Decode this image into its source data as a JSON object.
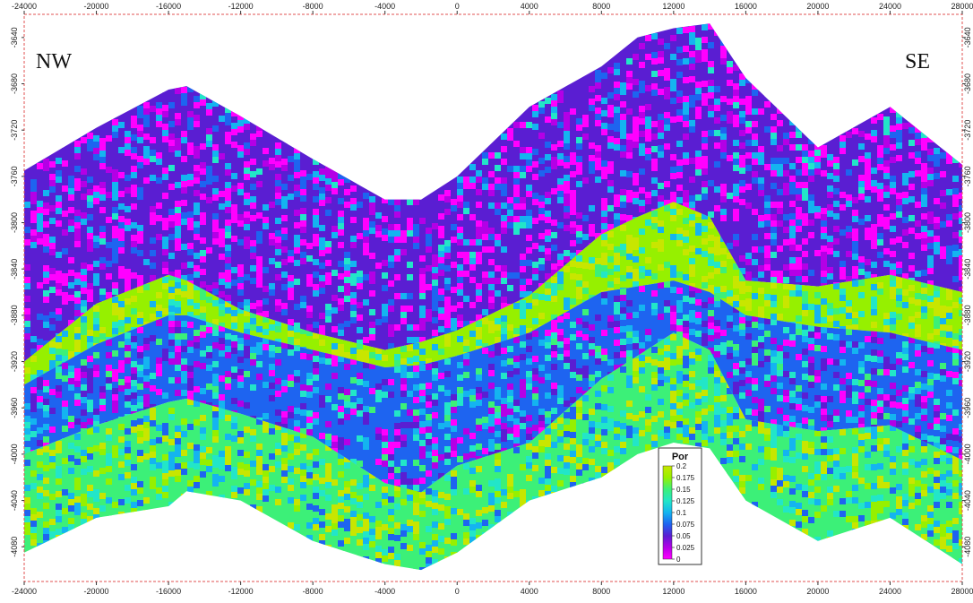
{
  "chart_data": {
    "type": "heatmap",
    "title": "",
    "corner_labels": {
      "left": "NW",
      "right": "SE"
    },
    "x_axis": {
      "range": [
        -24000,
        28000
      ],
      "ticks": [
        -24000,
        -20000,
        -16000,
        -12000,
        -8000,
        -4000,
        0,
        4000,
        8000,
        12000,
        16000,
        20000,
        24000,
        28000
      ]
    },
    "y_axis": {
      "range": [
        -3620,
        -4110
      ],
      "ticks": [
        -3640,
        -3680,
        -3720,
        -3760,
        -3800,
        -3840,
        -3880,
        -3920,
        -3960,
        -4000,
        -4040,
        -4080
      ],
      "right_ticks_shown": true
    },
    "colorbar": {
      "title": "Por",
      "min": 0,
      "max": 0.2,
      "tick_labels": [
        "0.2",
        "0.175",
        "0.15",
        "0.125",
        "0.1",
        "0.075",
        "0.05",
        "0.025",
        "0"
      ],
      "colors": [
        "#c8e600",
        "#96f000",
        "#3cf078",
        "#22e6c8",
        "#14b4f0",
        "#1e64f0",
        "#5a1ed2",
        "#b400e6",
        "#ff00ff"
      ]
    },
    "frame": {
      "border": "dashed",
      "border_color": "#e05050"
    },
    "section_profile": {
      "x": [
        -24000,
        -20000,
        -16000,
        -15000,
        -12000,
        -8000,
        -4000,
        -2000,
        0,
        4000,
        8000,
        10000,
        12000,
        14000,
        16000,
        20000,
        24000,
        28000
      ],
      "top_depth": [
        -3755,
        -3718,
        -3685,
        -3682,
        -3708,
        -3745,
        -3780,
        -3780,
        -3760,
        -3700,
        -3665,
        -3640,
        -3632,
        -3628,
        -3675,
        -3735,
        -3700,
        -3750
      ],
      "base_depth": [
        -4085,
        -4055,
        -4045,
        -4032,
        -4040,
        -4075,
        -4095,
        -4100,
        -4085,
        -4040,
        -4020,
        -4000,
        -3990,
        -3995,
        -4040,
        -4075,
        -4055,
        -4095
      ]
    },
    "porosity_zones": [
      {
        "top_depth": [
          -3755,
          -3718,
          -3685,
          -3682,
          -3708,
          -3745,
          -3780,
          -3780,
          -3760,
          -3700,
          -3665,
          -3640,
          -3632,
          -3628,
          -3675,
          -3735,
          -3700,
          -3750
        ],
        "base_depth": [
          -3920,
          -3870,
          -3845,
          -3850,
          -3875,
          -3895,
          -3910,
          -3903,
          -3893,
          -3863,
          -3810,
          -3795,
          -3782,
          -3795,
          -3850,
          -3855,
          -3845,
          -3860
        ],
        "porosity": 0.04
      },
      {
        "top_depth": [
          -3920,
          -3870,
          -3845,
          -3850,
          -3875,
          -3895,
          -3910,
          -3903,
          -3893,
          -3863,
          -3810,
          -3795,
          -3782,
          -3795,
          -3850,
          -3855,
          -3845,
          -3860
        ],
        "base_depth": [
          -3940,
          -3905,
          -3880,
          -3880,
          -3895,
          -3910,
          -3925,
          -3923,
          -3915,
          -3895,
          -3860,
          -3855,
          -3850,
          -3860,
          -3880,
          -3890,
          -3895,
          -3910
        ],
        "porosity": 0.17
      },
      {
        "top_depth": [
          -3940,
          -3905,
          -3880,
          -3880,
          -3895,
          -3910,
          -3925,
          -3923,
          -3915,
          -3895,
          -3860,
          -3855,
          -3850,
          -3860,
          -3880,
          -3890,
          -3895,
          -3910
        ],
        "base_depth": [
          -4000,
          -3975,
          -3955,
          -3952,
          -3965,
          -3985,
          -4025,
          -4033,
          -4010,
          -3990,
          -3935,
          -3915,
          -3895,
          -3910,
          -3970,
          -3980,
          -3975,
          -4005
        ],
        "porosity": 0.07
      },
      {
        "top_depth": [
          -4000,
          -3975,
          -3955,
          -3952,
          -3965,
          -3985,
          -4025,
          -4033,
          -4010,
          -3990,
          -3935,
          -3915,
          -3895,
          -3910,
          -3970,
          -3980,
          -3975,
          -4005
        ],
        "base_depth": [
          -4085,
          -4055,
          -4045,
          -4032,
          -4040,
          -4075,
          -4095,
          -4100,
          -4085,
          -4040,
          -4020,
          -4000,
          -3990,
          -3995,
          -4040,
          -4075,
          -4055,
          -4095
        ],
        "porosity": 0.15
      }
    ]
  }
}
